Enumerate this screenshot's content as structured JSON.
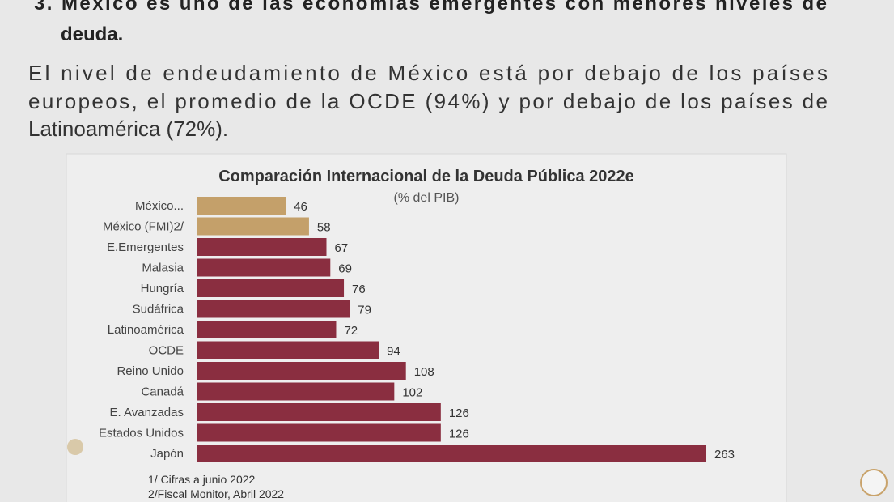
{
  "header": {
    "lines": [
      "3. México es uno de las economías emergentes con menores niveles de",
      "deuda."
    ]
  },
  "paragraph": {
    "lines": [
      "El nivel de endeudamiento de México está por debajo de los países",
      "europeos, el promedio de la OCDE (94%) y por debajo de los países de",
      "Latinoamérica (72%)."
    ]
  },
  "chart_data": {
    "type": "bar",
    "orientation": "horizontal",
    "title": "Comparación Internacional de la Deuda Pública 2022e",
    "subtitle": "(% del PIB)",
    "categories": [
      "México...",
      "México (FMI)2/",
      "E.Emergentes",
      "Malasia",
      "Hungría",
      "Sudáfrica",
      "Latinoamérica",
      "OCDE",
      "Reino Unido",
      "Canadá",
      "E. Avanzadas",
      "Estados Unidos",
      "Japón"
    ],
    "values": [
      46,
      58,
      67,
      69,
      76,
      79,
      72,
      94,
      108,
      102,
      126,
      126,
      263
    ],
    "colors": [
      "#c4a06a",
      "#c4a06a",
      "#8a2e40",
      "#8a2e40",
      "#8a2e40",
      "#8a2e40",
      "#8a2e40",
      "#8a2e40",
      "#8a2e40",
      "#8a2e40",
      "#8a2e40",
      "#8a2e40",
      "#8a2e40"
    ],
    "notes": [
      "1/ Cifras a junio 2022",
      "2/Fiscal Monitor, Abril 2022"
    ]
  }
}
